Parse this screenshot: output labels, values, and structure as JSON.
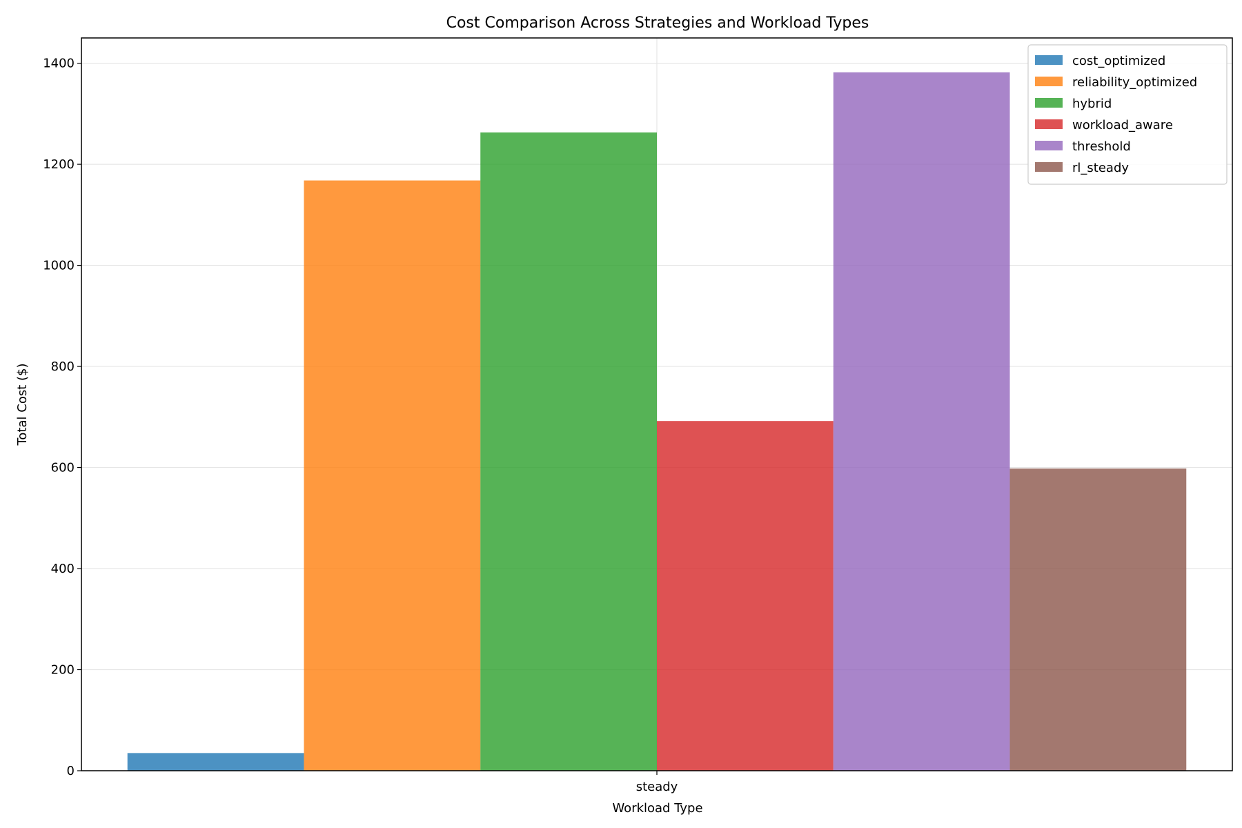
{
  "chart_data": {
    "type": "bar",
    "title": "Cost Comparison Across Strategies and Workload Types",
    "xlabel": "Workload Type",
    "ylabel": "Total Cost ($)",
    "categories": [
      "steady"
    ],
    "ylim": [
      0,
      1450
    ],
    "yticks": [
      0,
      200,
      400,
      600,
      800,
      1000,
      1200,
      1400
    ],
    "grid": true,
    "legend_position": "top-right",
    "series": [
      {
        "name": "cost_optimized",
        "values": [
          35
        ],
        "color": "#1f77b4"
      },
      {
        "name": "reliability_optimized",
        "values": [
          1168
        ],
        "color": "#ff7f0e"
      },
      {
        "name": "hybrid",
        "values": [
          1263
        ],
        "color": "#2ca02c"
      },
      {
        "name": "workload_aware",
        "values": [
          692
        ],
        "color": "#d62728"
      },
      {
        "name": "threshold",
        "values": [
          1382
        ],
        "color": "#9467bd"
      },
      {
        "name": "rl_steady",
        "values": [
          598
        ],
        "color": "#8c564b"
      }
    ]
  }
}
